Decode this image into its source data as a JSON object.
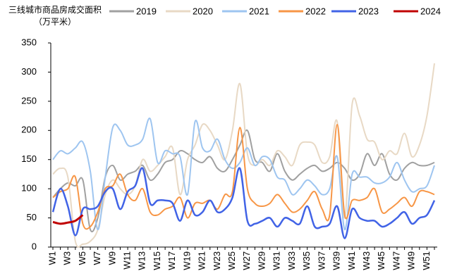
{
  "chart_data": {
    "type": "line",
    "title": "三线城市商品房成交面积（万平米）",
    "categories": [
      "W1",
      null,
      "W3",
      null,
      "W5",
      null,
      "W7",
      null,
      "W9",
      null,
      "W11",
      null,
      "W13",
      null,
      "W15",
      null,
      "W17",
      null,
      "W19",
      null,
      "W21",
      null,
      "W23",
      null,
      "W25",
      null,
      "W27",
      null,
      "W29",
      null,
      "W31",
      null,
      "W33",
      null,
      "W35",
      null,
      "W37",
      null,
      "W39",
      null,
      "W41",
      null,
      "W43",
      null,
      "W45",
      null,
      "W47",
      null,
      "W49",
      null,
      "W51",
      null
    ],
    "series": [
      {
        "name": "2019",
        "color": "#a0a0a0",
        "width": 2,
        "values": [
          85,
          100,
          110,
          105,
          115,
          30,
          50,
          120,
          140,
          115,
          125,
          130,
          140,
          115,
          125,
          145,
          150,
          165,
          160,
          150,
          145,
          155,
          135,
          130,
          150,
          175,
          200,
          150,
          145,
          130,
          160,
          130,
          115,
          125,
          135,
          140,
          130,
          135,
          145,
          135,
          115,
          125,
          160,
          140,
          160,
          125,
          115,
          135,
          145,
          140,
          140,
          145
        ]
      },
      {
        "name": "2020",
        "color": "#e8d9c5",
        "width": 2,
        "values": [
          125,
          135,
          120,
          10,
          5,
          10,
          30,
          90,
          115,
          100,
          90,
          105,
          150,
          130,
          140,
          155,
          170,
          90,
          150,
          175,
          210,
          200,
          175,
          150,
          200,
          280,
          160,
          140,
          150,
          140,
          165,
          155,
          140,
          175,
          180,
          175,
          145,
          155,
          215,
          50,
          245,
          225,
          185,
          180,
          150,
          165,
          160,
          195,
          155,
          175,
          225,
          315
        ]
      },
      {
        "name": "2021",
        "color": "#9ec5f0",
        "width": 2,
        "values": [
          150,
          165,
          160,
          170,
          180,
          130,
          30,
          120,
          205,
          200,
          175,
          175,
          185,
          220,
          145,
          165,
          160,
          155,
          90,
          215,
          170,
          165,
          185,
          150,
          135,
          145,
          170,
          140,
          155,
          150,
          120,
          115,
          90,
          100,
          115,
          105,
          90,
          100,
          155,
          30,
          125,
          120,
          120,
          110,
          110,
          120,
          145,
          115,
          95,
          100,
          105,
          140
        ]
      },
      {
        "name": "2022",
        "color": "#f79646",
        "width": 2,
        "values": [
          85,
          95,
          100,
          120,
          40,
          35,
          60,
          100,
          105,
          125,
          90,
          80,
          100,
          60,
          55,
          65,
          70,
          85,
          50,
          75,
          75,
          80,
          65,
          90,
          95,
          205,
          100,
          75,
          70,
          75,
          90,
          75,
          60,
          65,
          80,
          95,
          65,
          55,
          210,
          55,
          80,
          80,
          85,
          100,
          60,
          65,
          75,
          85,
          70,
          95,
          95,
          90
        ]
      },
      {
        "name": "2023",
        "color": "#4163e6",
        "width": 2.5,
        "values": [
          60,
          100,
          70,
          20,
          65,
          65,
          70,
          95,
          100,
          65,
          95,
          105,
          135,
          75,
          80,
          80,
          75,
          45,
          80,
          55,
          60,
          80,
          60,
          65,
          85,
          135,
          45,
          40,
          45,
          50,
          35,
          50,
          45,
          40,
          70,
          35,
          35,
          40,
          70,
          15,
          65,
          50,
          45,
          45,
          35,
          40,
          50,
          60,
          40,
          50,
          55,
          80
        ]
      },
      {
        "name": "2024",
        "color": "#c00000",
        "width": 3,
        "values": [
          43,
          40,
          42,
          45,
          55,
          null,
          null,
          null,
          null,
          null,
          null,
          null,
          null,
          null,
          null,
          null,
          null,
          null,
          null,
          null,
          null,
          null,
          null,
          null,
          null,
          null,
          null,
          null,
          null,
          null,
          null,
          null,
          null,
          null,
          null,
          null,
          null,
          null,
          null,
          null,
          null,
          null,
          null,
          null,
          null,
          null,
          null,
          null,
          null,
          null,
          null,
          null
        ]
      }
    ],
    "ylim": [
      0,
      350
    ],
    "yticks": [
      0,
      50,
      100,
      150,
      200,
      250,
      300,
      350
    ],
    "legend": "top"
  }
}
